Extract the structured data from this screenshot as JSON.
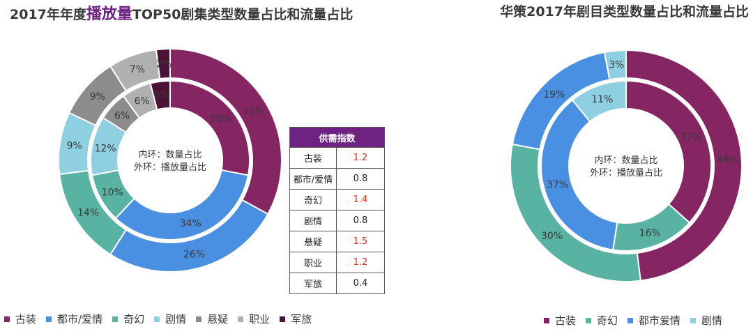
{
  "titles": {
    "left_prefix": "2017年年度",
    "left_highlight": "播放量",
    "left_suffix": "TOP50剧集类型数量占比和流量占比",
    "right": "华策2017年剧目类型数量占比和流量占比"
  },
  "colors": {
    "古装": "#852561",
    "都市/爱情": "#4a90e2",
    "都市爱情": "#4a90e2",
    "奇幻": "#59b3a3",
    "剧情": "#8ecfe2",
    "悬疑": "#8c8c8c",
    "职业": "#b0b0b0",
    "军旅": "#4d1238",
    "highlight": "#6e2382",
    "supply_high": "#d93025"
  },
  "chart_data": [
    {
      "type": "donut",
      "title": "2017年年度播放量TOP50剧集类型数量占比和流量占比",
      "center_label": [
        "内环：数量占比",
        "外环：播放量占比"
      ],
      "categories": [
        "古装",
        "都市/爱情",
        "奇幻",
        "剧情",
        "悬疑",
        "职业",
        "军旅"
      ],
      "series": [
        {
          "name": "数量占比",
          "ring": "inner",
          "values": [
            28,
            34,
            10,
            12,
            6,
            6,
            4
          ]
        },
        {
          "name": "播放量占比",
          "ring": "outer",
          "values": [
            33,
            26,
            14,
            9,
            9,
            7,
            2
          ]
        }
      ],
      "legend": [
        "古装",
        "都市/爱情",
        "奇幻",
        "剧情",
        "悬疑",
        "职业",
        "军旅"
      ],
      "legend_position": "bottom"
    },
    {
      "type": "donut",
      "title": "华策2017年剧目类型数量占比和流量占比",
      "center_label": [
        "内环：数量占比",
        "外环：播放量占比"
      ],
      "categories": [
        "古装",
        "奇幻",
        "都市爱情",
        "剧情"
      ],
      "series": [
        {
          "name": "数量占比",
          "ring": "inner",
          "values": [
            37,
            16,
            37,
            11
          ]
        },
        {
          "name": "播放量占比",
          "ring": "outer",
          "values": [
            48,
            30,
            19,
            3
          ]
        }
      ],
      "legend": [
        "古装",
        "奇幻",
        "都市爱情",
        "剧情"
      ],
      "legend_position": "bottom"
    }
  ],
  "supply_table": {
    "header": "供需指数",
    "rows": [
      {
        "name": "古装",
        "value": "1.2",
        "high": true
      },
      {
        "name": "都市/爱情",
        "value": "0.8",
        "high": false
      },
      {
        "name": "奇幻",
        "value": "1.4",
        "high": true
      },
      {
        "name": "剧情",
        "value": "0.8",
        "high": false
      },
      {
        "name": "悬疑",
        "value": "1.5",
        "high": true
      },
      {
        "name": "职业",
        "value": "1.2",
        "high": true
      },
      {
        "name": "军旅",
        "value": "0.4",
        "high": false
      }
    ]
  }
}
